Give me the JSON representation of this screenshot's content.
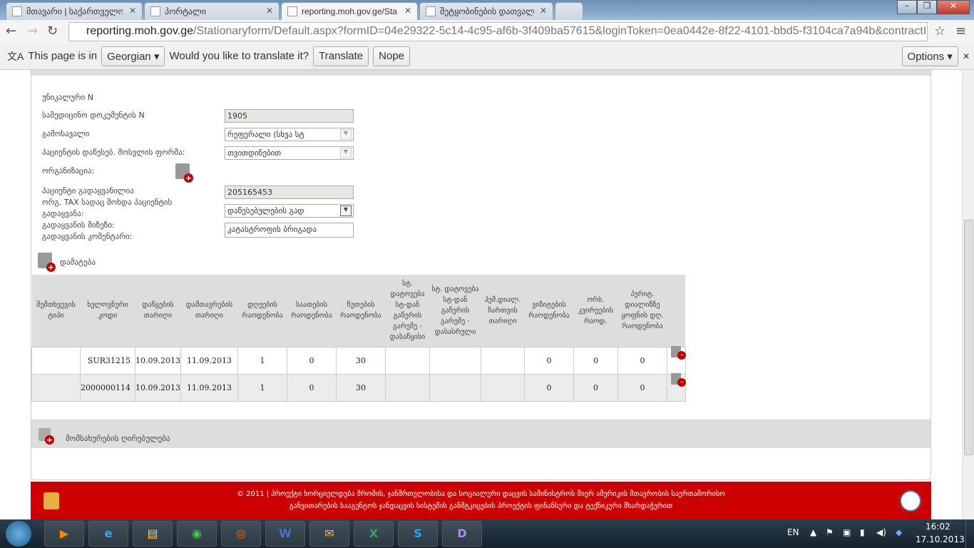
{
  "browser": {
    "tabs": [
      {
        "title": "მთავარი | საქართველო",
        "active": false
      },
      {
        "title": "პორტალი",
        "active": false
      },
      {
        "title": "reporting.moh.gov.ge/Sta",
        "active": true
      },
      {
        "title": "შეტყობინების დათვალი",
        "active": false
      }
    ],
    "url_host": "reporting.moh.gov.ge",
    "url_path": "/Stationaryform/Default.aspx?formID=04e29322-5c14-4c95-af6b-3f409ba57615&loginToken=0ea0442e-8f22-4101-bbd5-f3104ca7a94b&contractI",
    "translate": {
      "prefix": "This page is in",
      "language": "Georgian",
      "question": "Would you like to translate it?",
      "translate_label": "Translate",
      "nope_label": "Nope",
      "options_label": "Options"
    }
  },
  "form": {
    "fields": [
      {
        "label": "უნიკალური N",
        "value": ""
      },
      {
        "label": "სამედიცინო დოკუმენტის N",
        "value": "1905"
      },
      {
        "label": "გამოსავალი",
        "value": "რეფერალი (სხვა სტ"
      },
      {
        "label": "პაციენტის დაწესებ. მოსვლის ფორმა:",
        "value": "თვითდინებით"
      },
      {
        "label": "ორგანიზაცია:",
        "value": ""
      },
      {
        "label": "პაციენტი გადაყვანილია",
        "value": ""
      },
      {
        "label": "ორგ. TAX სადაც მოხდა პაციენტის",
        "value": "205165453"
      },
      {
        "label": "გადაყვანა:",
        "value": "დაწესებულების გად"
      },
      {
        "label": "გადაყვანის მიზეზი:",
        "value": ""
      },
      {
        "label": "გადაყვანის კომენტარი:",
        "value": "კატასტროფის ბრიგადა"
      }
    ],
    "add_label": "დამატება"
  },
  "table": {
    "headers": [
      "შემთხვევის ტიპი",
      "ხელოვნური კოდი",
      "დაწყების თარიღი",
      "დამთავრების თარიღი",
      "დღეების რაოდენობა",
      "საათების რაოდენობა",
      "წუთების რაოდენობა",
      "სტ. დატოვება სტ-დან გაწერის გარეშე - დასაწყისი",
      "სტ. დატოვება სტ-დან გაწერის გარეშე - დასასრული",
      "ჰემ.დიალ. ჩართვის თარიღი",
      "ვიზიტების რაოდენობა",
      "ორს. კვირეების რაოდ.",
      "პერიტ. დიალიზზე ყოფნის დღ. რაოდენობა"
    ],
    "rows": [
      [
        "",
        "SUR31215",
        "10.09.2013",
        "11.09.2013",
        "1",
        "0",
        "30",
        "",
        "",
        "",
        "0",
        "0",
        "0"
      ],
      [
        "",
        "2000000114",
        "10.09.2013",
        "11.09.2013",
        "1",
        "0",
        "30",
        "",
        "",
        "",
        "0",
        "0",
        "0"
      ]
    ]
  },
  "services_label": "მომსახურების ღირებულება",
  "footer": {
    "line1": "© 2011 | პროექტი ხორციელდება შრომის, ჯანმრთელობისა და სოციალური დაცვის სამინისტროს მიერ ამერიკის მთავრობის საერთაშორისო",
    "line2": "განვითარების სააგენტოს ჯანდაცვის სისტემის განმტკიცების პროექტის ფინანსური და ტექნიკური მხარდაჭერით"
  },
  "taskbar": {
    "lang": "EN",
    "time": "16:02",
    "date": "17.10.2013"
  },
  "colors": {
    "footer": "#cc0000",
    "header_strip": "#dddddd"
  }
}
